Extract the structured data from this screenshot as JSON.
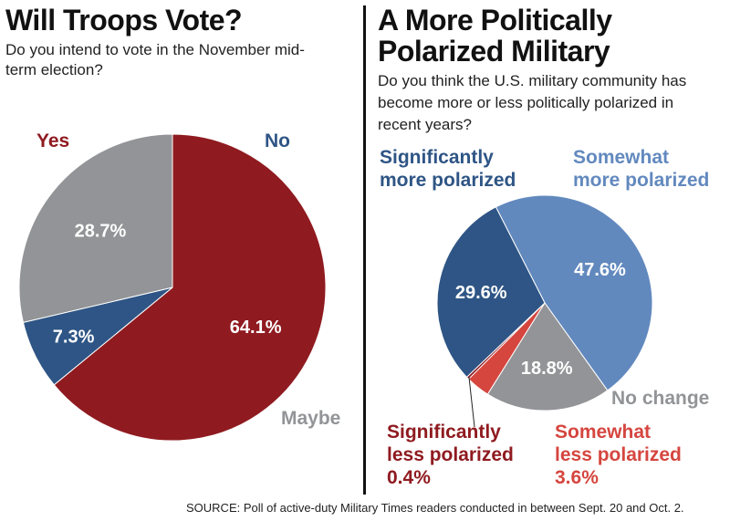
{
  "source": "SOURCE: Poll of active-duty Military Times readers conducted in between Sept. 20 and Oct. 2.",
  "chart_data": [
    {
      "type": "pie",
      "title": "Will Troops Vote?",
      "subtitle": "Do you intend to vote in the November mid-term election?",
      "slices": [
        {
          "label": "Yes",
          "value": 64.1,
          "value_label": "64.1%",
          "color": "#8f1b20"
        },
        {
          "label": "No",
          "value": 7.3,
          "value_label": "7.3%",
          "color": "#2e5585"
        },
        {
          "label": "Maybe",
          "value": 28.7,
          "value_label": "28.7%",
          "color": "#929497"
        }
      ]
    },
    {
      "type": "pie",
      "title_lines": [
        "A More Politically",
        "Polarized Military"
      ],
      "subtitle_lines": [
        "Do you think the U.S. military community has",
        "become more or less politically polarized in",
        "recent years?"
      ],
      "slices": [
        {
          "label_lines": [
            "Somewhat",
            "more polarized"
          ],
          "value": 47.6,
          "value_label": "47.6%",
          "color": "#6289be"
        },
        {
          "label_lines": [
            "No change"
          ],
          "value": 18.8,
          "value_label": "18.8%",
          "color": "#929497"
        },
        {
          "label_lines": [
            "Somewhat",
            "less polarized",
            "3.6%"
          ],
          "value": 3.6,
          "color": "#d5463f"
        },
        {
          "label_lines": [
            "Significantly",
            "less polarized",
            "0.4%"
          ],
          "value": 0.4,
          "color": "#8f1b20"
        },
        {
          "label_lines": [
            "Significantly",
            "more polarized"
          ],
          "value": 29.6,
          "value_label": "29.6%",
          "color": "#2e5585"
        }
      ]
    }
  ]
}
